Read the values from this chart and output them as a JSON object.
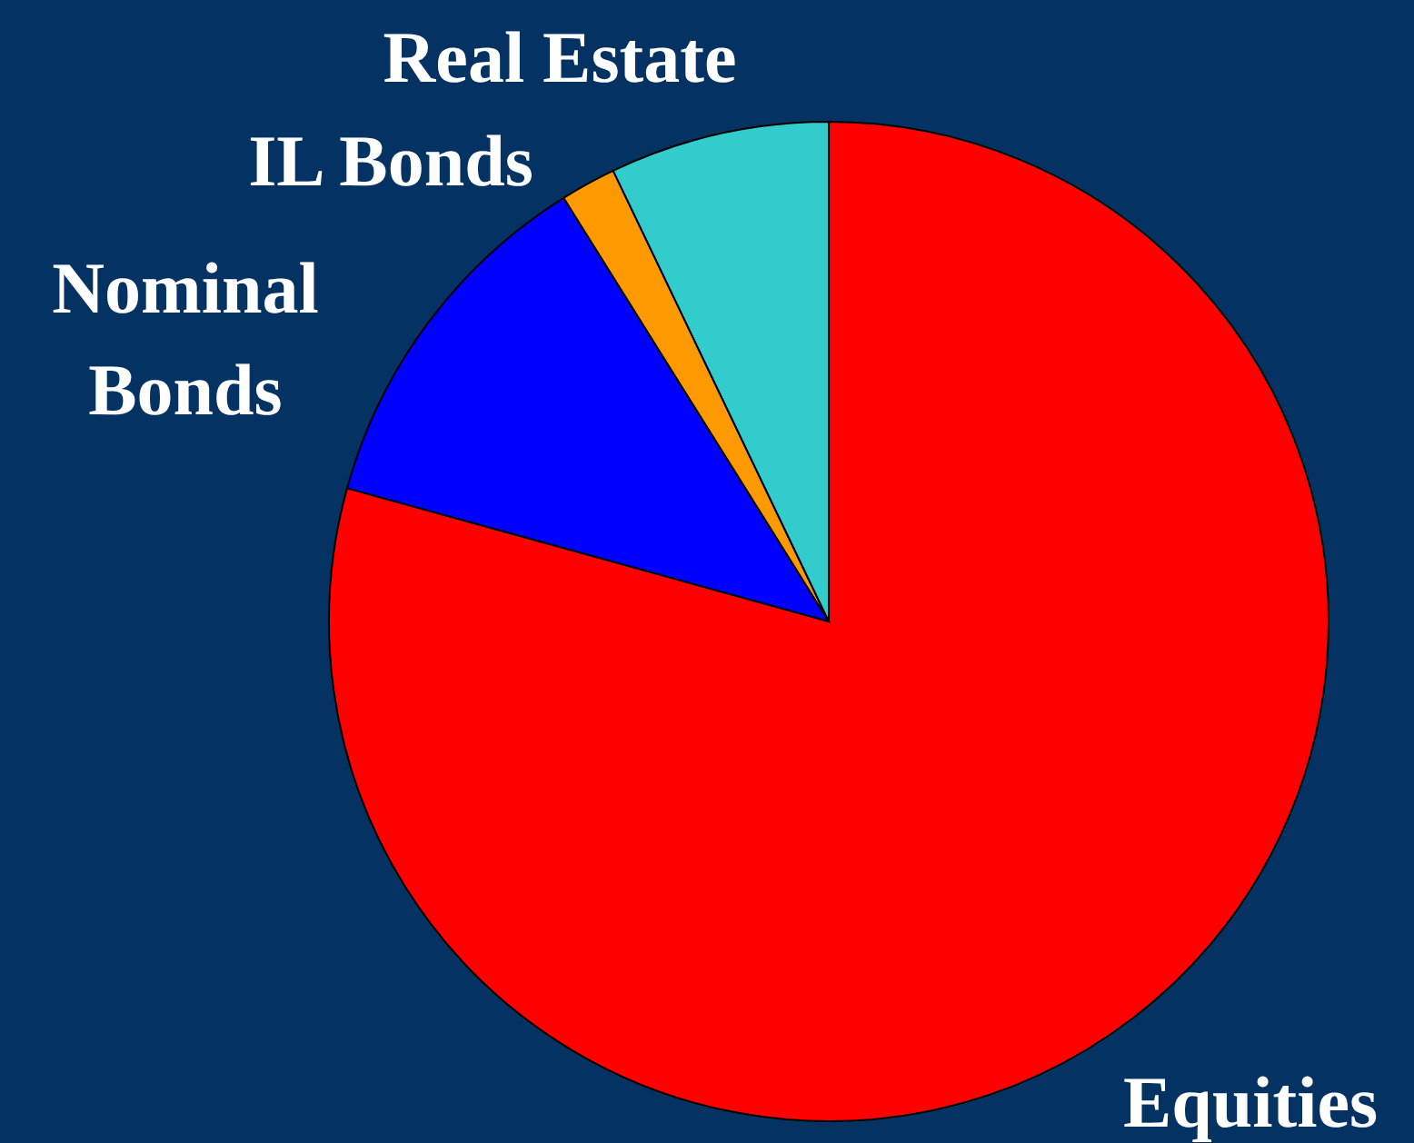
{
  "chart_data": {
    "type": "pie",
    "categories": [
      "Equities",
      "Nominal Bonds",
      "IL Bonds",
      "Real Estate"
    ],
    "values": [
      79.3,
      11.8,
      1.8,
      7.1
    ],
    "colors": [
      "#ff0000",
      "#0000ff",
      "#ff9900",
      "#33cccc"
    ]
  }
}
